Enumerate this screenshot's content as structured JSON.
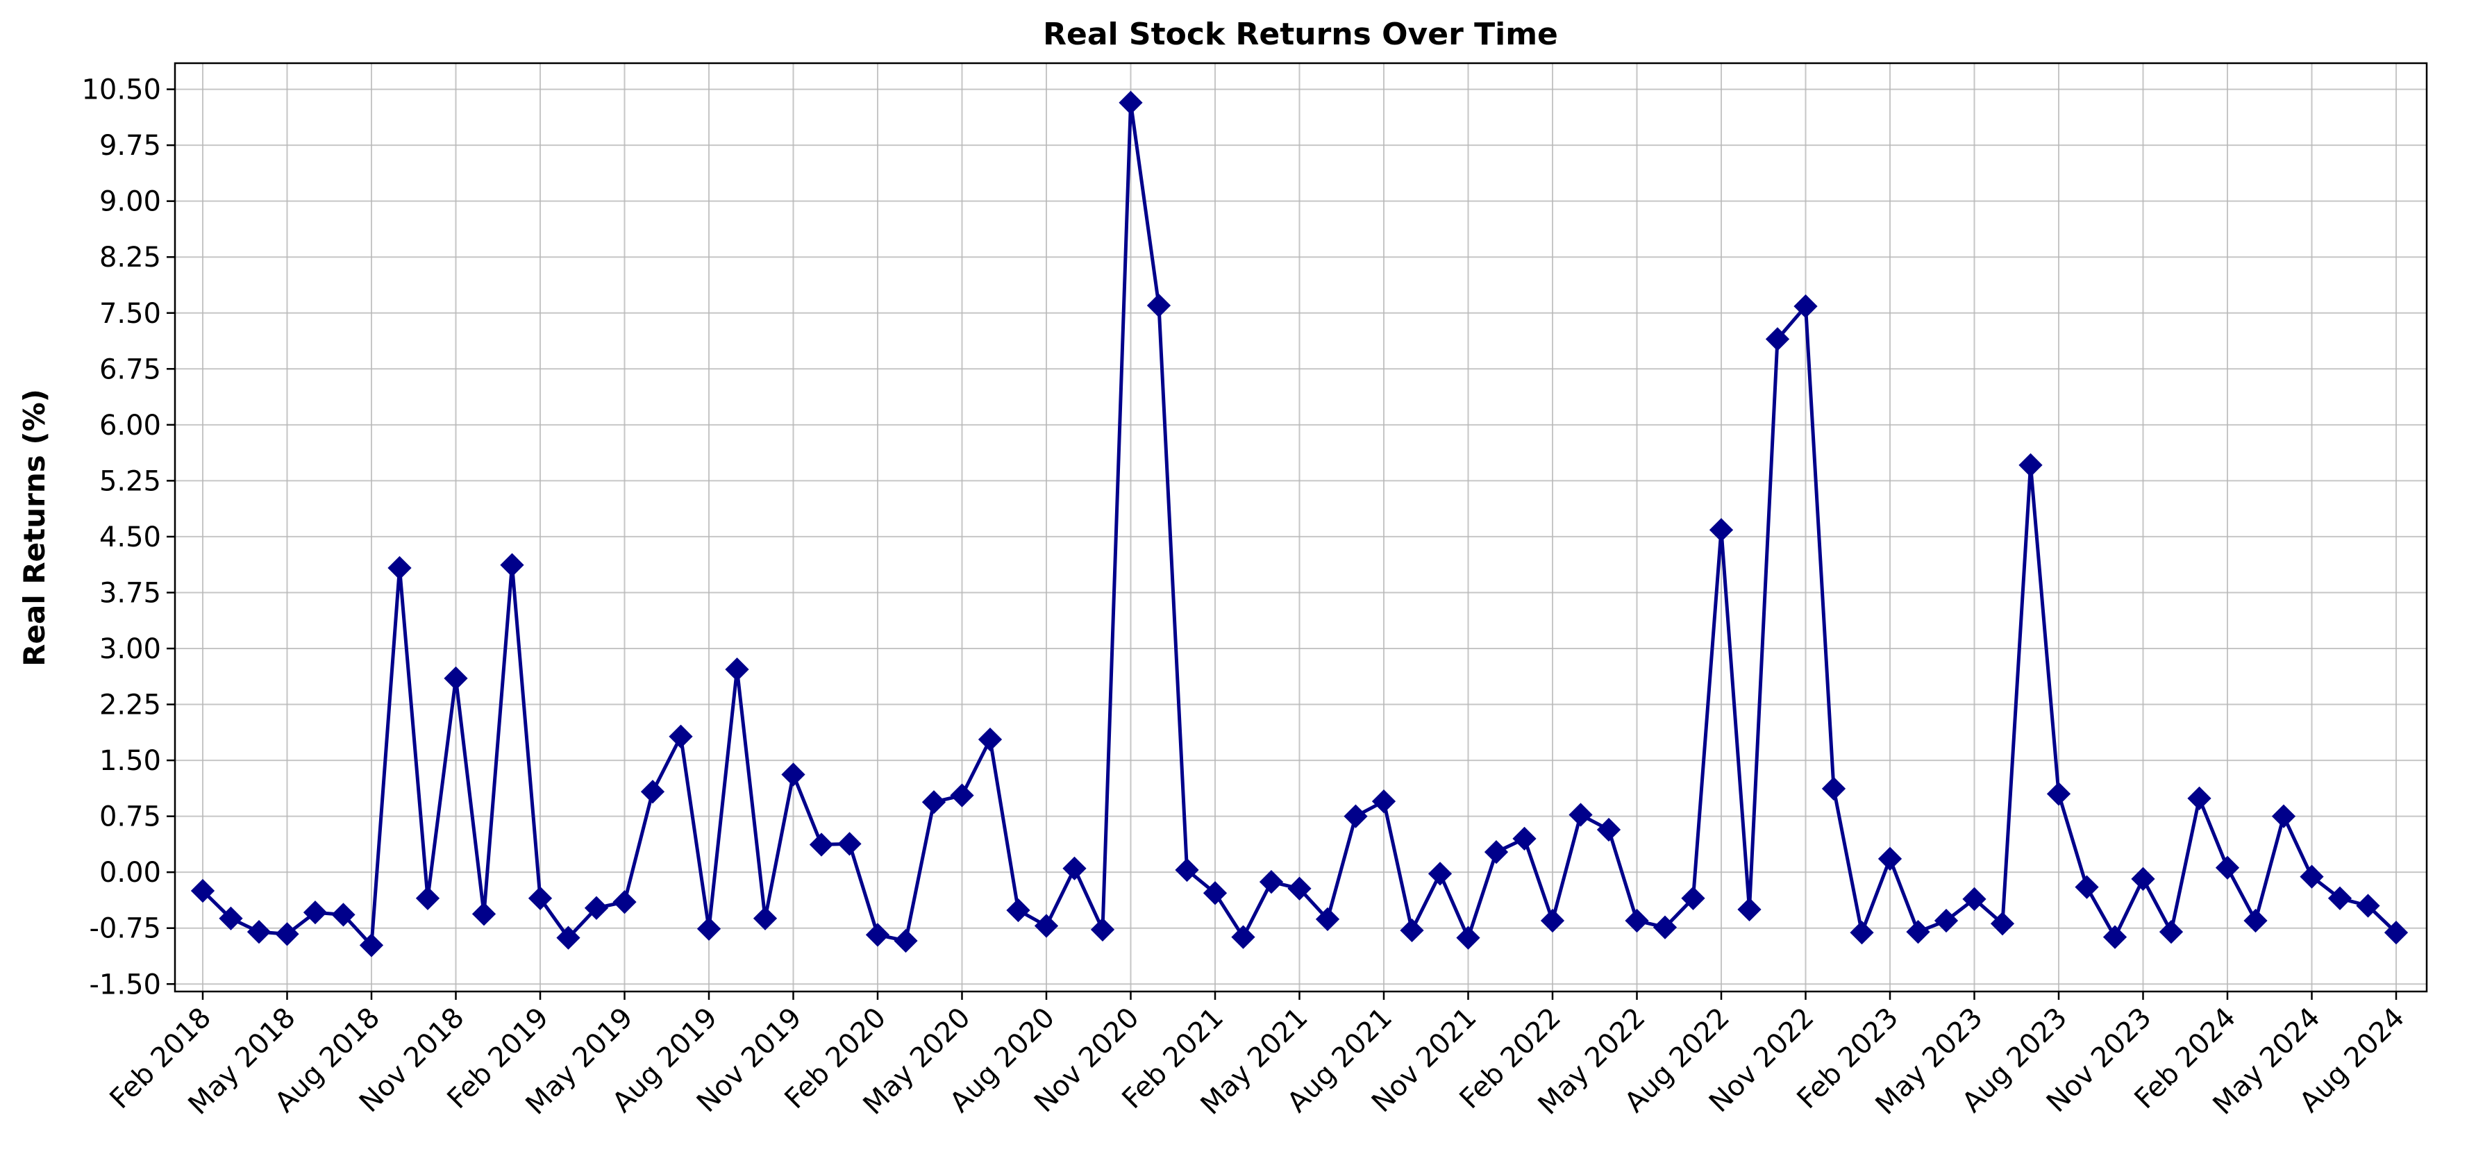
{
  "chart_data": {
    "type": "line",
    "title": "Real Stock Returns Over Time",
    "xlabel": "",
    "ylabel": "Real Returns (%)",
    "ylim": [
      -1.6,
      10.85
    ],
    "y_ticks": [
      -1.5,
      -0.75,
      0.0,
      0.75,
      1.5,
      2.25,
      3.0,
      3.75,
      4.5,
      5.25,
      6.0,
      6.75,
      7.5,
      8.25,
      9.0,
      9.75,
      10.5
    ],
    "y_tick_labels": [
      "-1.50",
      "-0.75",
      "0.00",
      "0.75",
      "1.50",
      "2.25",
      "3.00",
      "3.75",
      "4.50",
      "5.25",
      "6.00",
      "6.75",
      "7.50",
      "8.25",
      "9.00",
      "9.75",
      "10.50"
    ],
    "x_tick_labels": [
      "Feb 2018",
      "May 2018",
      "Aug 2018",
      "Nov 2018",
      "Feb 2019",
      "May 2019",
      "Aug 2019",
      "Nov 2019",
      "Feb 2020",
      "May 2020",
      "Aug 2020",
      "Nov 2020",
      "Feb 2021",
      "May 2021",
      "Aug 2021",
      "Nov 2021",
      "Feb 2022",
      "May 2022",
      "Aug 2022",
      "Nov 2022",
      "Feb 2023",
      "May 2023",
      "Aug 2023",
      "Nov 2023",
      "Feb 2024",
      "May 2024",
      "Aug 2024"
    ],
    "grid": true,
    "legend": "none",
    "marker": "diamond",
    "color": "#00008b",
    "x": [
      "Feb 2018",
      "Mar 2018",
      "Apr 2018",
      "May 2018",
      "Jun 2018",
      "Jul 2018",
      "Aug 2018",
      "Sep 2018",
      "Oct 2018",
      "Nov 2018",
      "Dec 2018",
      "Jan 2019",
      "Feb 2019",
      "Mar 2019",
      "Apr 2019",
      "May 2019",
      "Jun 2019",
      "Jul 2019",
      "Aug 2019",
      "Sep 2019",
      "Oct 2019",
      "Nov 2019",
      "Dec 2019",
      "Jan 2020",
      "Feb 2020",
      "Mar 2020",
      "Apr 2020",
      "May 2020",
      "Jun 2020",
      "Jul 2020",
      "Aug 2020",
      "Sep 2020",
      "Oct 2020",
      "Nov 2020",
      "Dec 2020",
      "Jan 2021",
      "Feb 2021",
      "Mar 2021",
      "Apr 2021",
      "May 2021",
      "Jun 2021",
      "Jul 2021",
      "Aug 2021",
      "Sep 2021",
      "Oct 2021",
      "Nov 2021",
      "Dec 2021",
      "Jan 2022",
      "Feb 2022",
      "Mar 2022",
      "Apr 2022",
      "May 2022",
      "Jun 2022",
      "Jul 2022",
      "Aug 2022",
      "Sep 2022",
      "Oct 2022",
      "Nov 2022",
      "Dec 2022",
      "Jan 2023",
      "Feb 2023",
      "Mar 2023",
      "Apr 2023",
      "May 2023",
      "Jun 2023",
      "Jul 2023",
      "Aug 2023",
      "Sep 2023",
      "Oct 2023",
      "Nov 2023",
      "Dec 2023",
      "Jan 2024",
      "Feb 2024",
      "Mar 2024",
      "Apr 2024",
      "May 2024",
      "Jun 2024",
      "Jul 2024",
      "Aug 2024"
    ],
    "y": [
      -0.25,
      -0.62,
      -0.8,
      -0.83,
      -0.54,
      -0.57,
      -0.98,
      4.08,
      -0.35,
      2.6,
      -0.56,
      4.12,
      -0.35,
      -0.88,
      -0.48,
      -0.4,
      1.08,
      1.82,
      -0.76,
      2.72,
      -0.62,
      1.31,
      0.37,
      0.38,
      -0.84,
      -0.92,
      0.94,
      1.03,
      1.78,
      -0.51,
      -0.72,
      0.05,
      -0.77,
      10.32,
      7.6,
      0.03,
      -0.28,
      -0.87,
      -0.13,
      -0.22,
      -0.63,
      0.75,
      0.95,
      -0.78,
      -0.02,
      -0.88,
      0.27,
      0.45,
      -0.65,
      0.77,
      0.57,
      -0.65,
      -0.74,
      -0.35,
      4.59,
      -0.5,
      7.15,
      7.59,
      1.12,
      -0.81,
      0.18,
      -0.8,
      -0.65,
      -0.36,
      -0.69,
      5.46,
      1.05,
      -0.2,
      -0.87,
      -0.09,
      -0.8,
      0.99,
      0.06,
      -0.65,
      0.75,
      -0.06,
      -0.35,
      -0.45,
      -0.81
    ]
  }
}
